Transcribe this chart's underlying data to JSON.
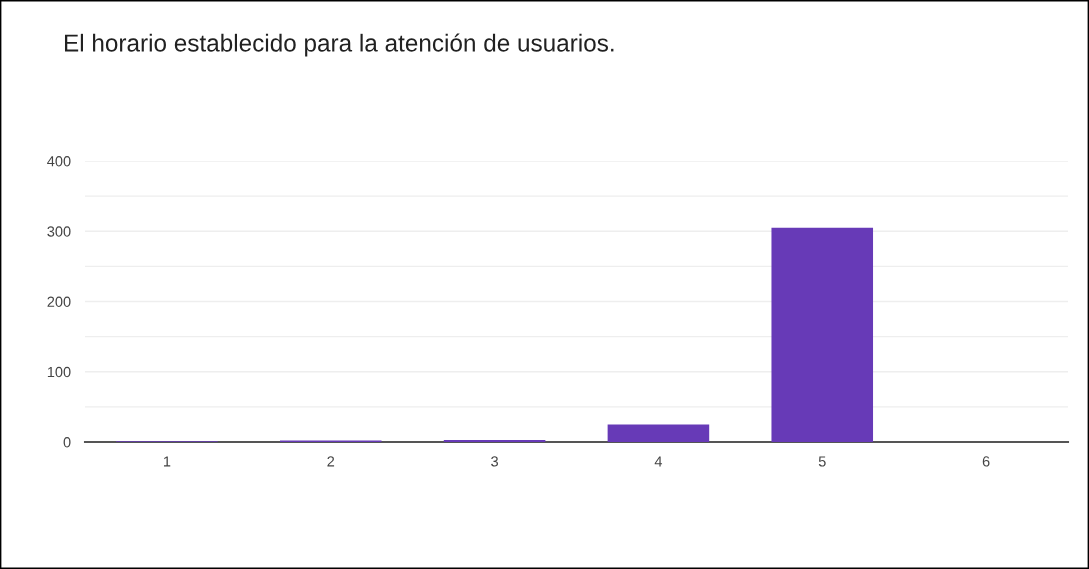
{
  "chart_data": {
    "type": "bar",
    "title": "El horario establecido para la atención de usuarios.",
    "categories": [
      "1",
      "2",
      "3",
      "4",
      "5",
      "6"
    ],
    "values": [
      1,
      2,
      3,
      25,
      305,
      0
    ],
    "color": "#673ab7",
    "ylim": [
      0,
      400
    ],
    "yticks": [
      0,
      {
        "value": 50,
        "label": null
      },
      100,
      {
        "value": 150,
        "label": null
      },
      200,
      {
        "value": 250,
        "label": null
      },
      300,
      {
        "value": 350,
        "label": null
      },
      400
    ],
    "grid": "y"
  }
}
